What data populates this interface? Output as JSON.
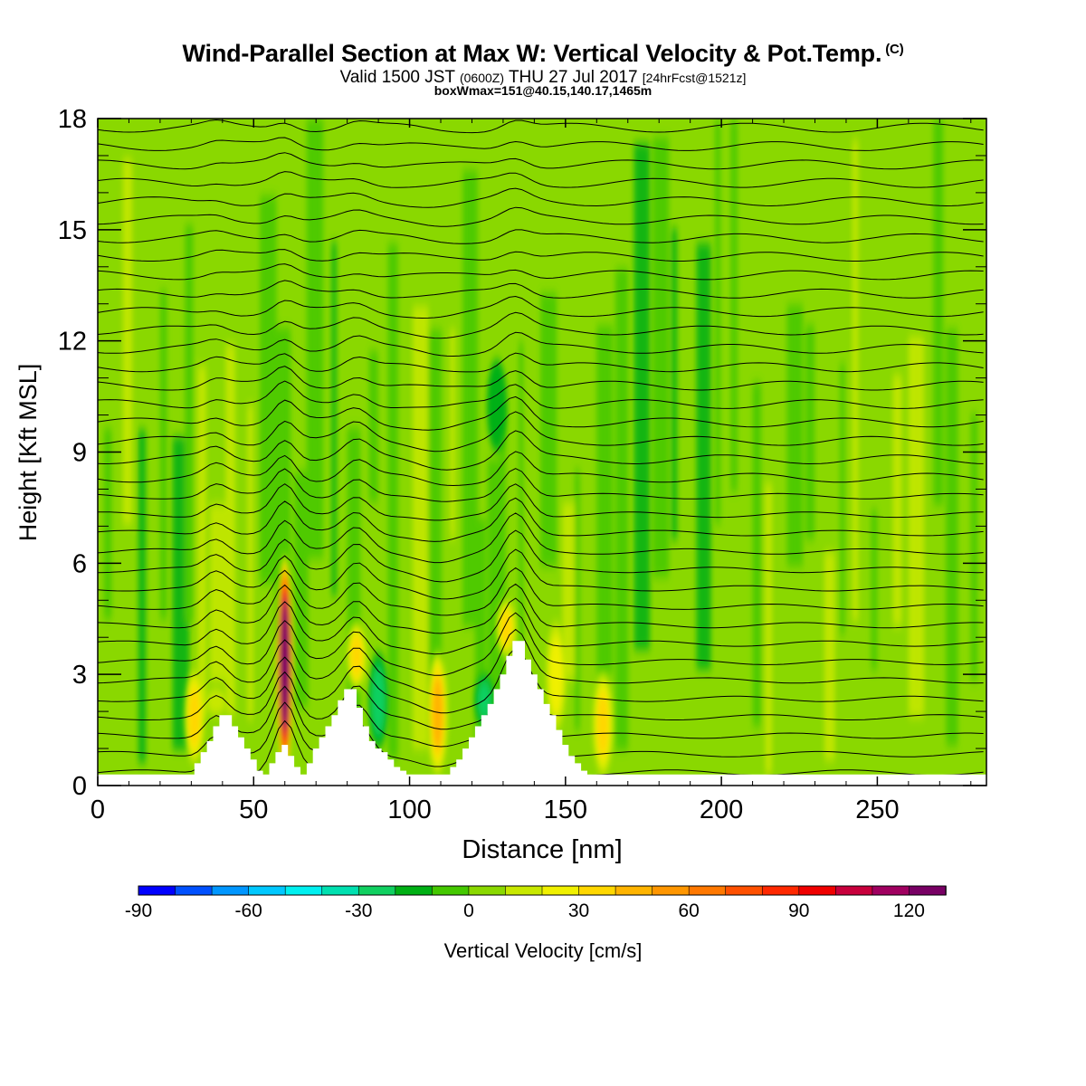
{
  "header": {
    "title": "Wind-Parallel Section at Max W: Vertical Velocity & Pot.Temp.",
    "copyright_mark": "(C)",
    "subtitle_main": "Valid 1500 JST",
    "subtitle_z": "(0600Z)",
    "subtitle_date": "THU 27 Jul 2017",
    "subtitle_fcst": "[24hrFcst@1521z]",
    "box_info": "boxWmax=151@40.15,140.17,1465m"
  },
  "chart_data": {
    "type": "heatmap",
    "title": "Wind-Parallel Section at Max W: Vertical Velocity & Pot.Temp.",
    "xlabel": "Distance [nm]",
    "ylabel": "Height [Kft MSL]",
    "xlim": [
      0,
      285
    ],
    "ylim": [
      0,
      18
    ],
    "xticks": [
      0,
      50,
      100,
      150,
      200,
      250
    ],
    "yticks": [
      0,
      3,
      6,
      9,
      12,
      15,
      18
    ],
    "terrain_profile": {
      "x": [
        0,
        28,
        31,
        33,
        35,
        37,
        39,
        41,
        43,
        45,
        47,
        49,
        51,
        53,
        55,
        57,
        59,
        61,
        63,
        65,
        67,
        69,
        71,
        73,
        75,
        77,
        79,
        81,
        83,
        85,
        87,
        89,
        91,
        93,
        95,
        97,
        99,
        101,
        103,
        105,
        107,
        109,
        111,
        113,
        115,
        117,
        119,
        121,
        123,
        125,
        127,
        129,
        131,
        133,
        135,
        137,
        139,
        141,
        143,
        145,
        147,
        149,
        151,
        153,
        155,
        157,
        160,
        285
      ],
      "height": [
        0.3,
        0.3,
        0.6,
        0.9,
        1.2,
        1.6,
        1.9,
        1.9,
        1.6,
        1.3,
        1.0,
        0.7,
        0.4,
        0.3,
        0.6,
        0.9,
        1.1,
        0.8,
        0.5,
        0.3,
        0.6,
        1.0,
        1.3,
        1.6,
        1.9,
        2.3,
        2.6,
        2.6,
        2.1,
        1.6,
        1.2,
        1.0,
        0.9,
        0.7,
        0.5,
        0.4,
        0.3,
        0.3,
        0.3,
        0.3,
        0.3,
        0.3,
        0.3,
        0.5,
        0.7,
        1.0,
        1.3,
        1.6,
        1.9,
        2.2,
        2.6,
        3.0,
        3.5,
        3.9,
        3.9,
        3.4,
        3.0,
        2.6,
        2.2,
        1.9,
        1.5,
        1.1,
        0.8,
        0.6,
        0.4,
        0.3,
        0.3,
        0.3
      ]
    },
    "vertical_velocity_features": [
      {
        "x": 60,
        "z_bottom": 0.3,
        "z_top": 6.2,
        "w_max": 151,
        "note": "max updraft"
      },
      {
        "x": 31,
        "z_bottom": 0.6,
        "z_top": 3.1,
        "w_max": 40
      },
      {
        "x": 38,
        "z_bottom": 1.9,
        "z_top": 2.6,
        "w_max": 20
      },
      {
        "x": 83,
        "z_bottom": 2.6,
        "z_top": 4.4,
        "w_max": 40
      },
      {
        "x": 109,
        "z_bottom": 0.3,
        "z_top": 3.6,
        "w_max": 50
      },
      {
        "x": 131,
        "z_bottom": 3.5,
        "z_top": 5.0,
        "w_max": 40
      },
      {
        "x": 147,
        "z_bottom": 1.5,
        "z_top": 4.4,
        "w_max": 30
      },
      {
        "x": 162,
        "z_bottom": 0.3,
        "z_top": 3.0,
        "w_max": 40
      },
      {
        "x": 90,
        "z_bottom": 1.0,
        "z_top": 3.6,
        "w_max": -25
      },
      {
        "x": 124,
        "z_bottom": 1.6,
        "z_top": 3.0,
        "w_max": -30
      },
      {
        "x": 128,
        "z_bottom": 9.0,
        "z_top": 11.5,
        "w_max": -20
      }
    ],
    "theta_isolines": {
      "count": 36,
      "note": "potential temperature contours (black)"
    },
    "colorbar": {
      "label": "Vertical Velocity [cm/s]",
      "min": -90,
      "max": 130,
      "step": 10,
      "tick_labels": [
        -90,
        -60,
        -30,
        0,
        30,
        60,
        90,
        120
      ],
      "colors": [
        "#0000ff",
        "#0050ff",
        "#0096ff",
        "#00c8ff",
        "#00f0f0",
        "#00e0b0",
        "#10d060",
        "#00b014",
        "#44c800",
        "#8ad800",
        "#c8e800",
        "#f0f000",
        "#ffd700",
        "#ffb400",
        "#ff9600",
        "#ff7800",
        "#ff5000",
        "#ff2800",
        "#f00000",
        "#c8003c",
        "#a00060",
        "#780064"
      ]
    },
    "grid": false,
    "legend": "colorbar-bottom"
  }
}
